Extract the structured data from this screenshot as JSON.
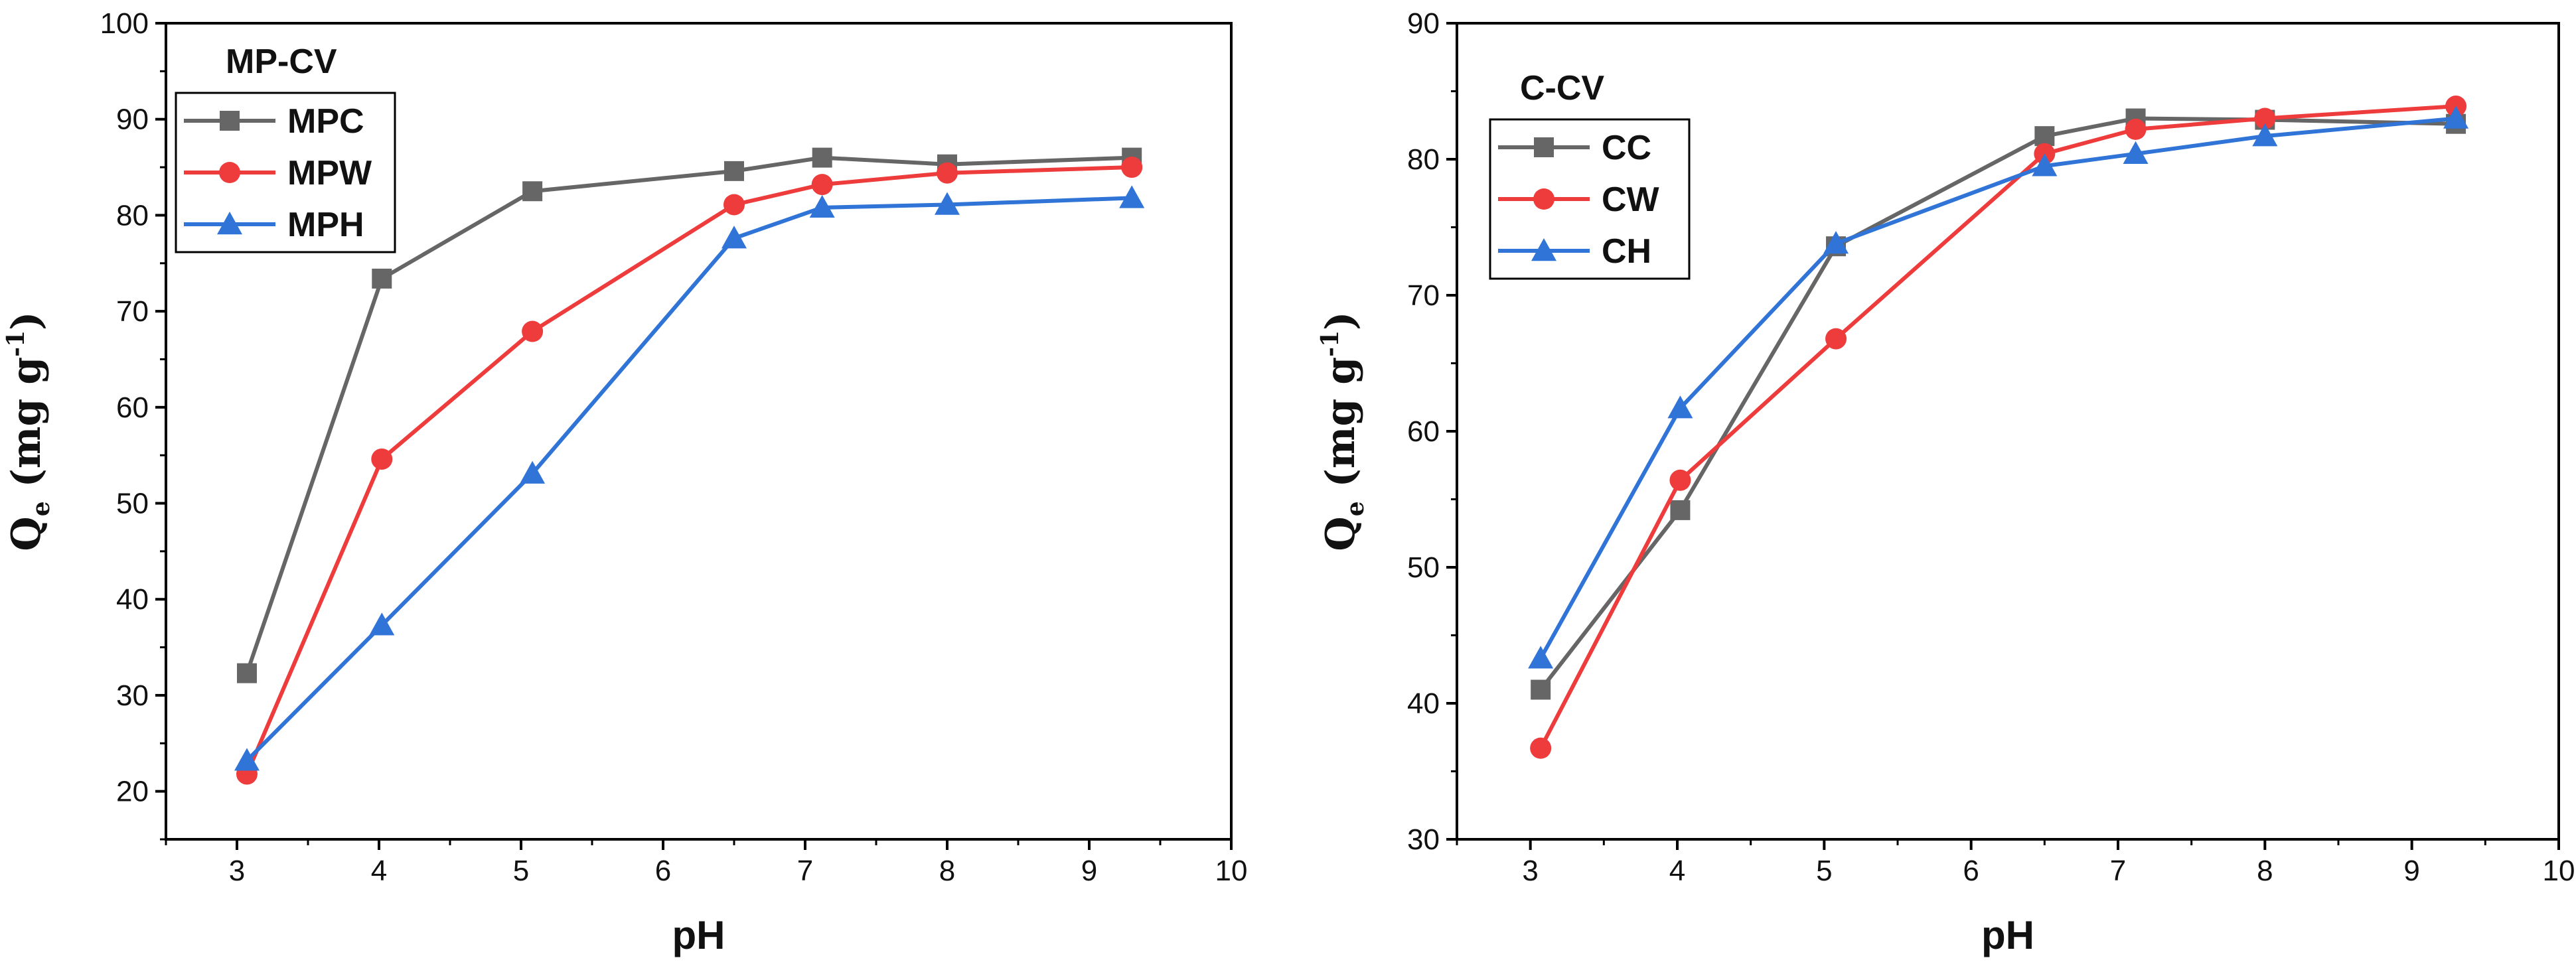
{
  "chart_data": [
    {
      "type": "line",
      "legend_title": "MP-CV",
      "xlabel": "pH",
      "ylabel": {
        "symbol": "Q",
        "subscript": "e",
        "units": "(mg g",
        "exponent": "-1",
        "close": ")"
      },
      "xlim": [
        2.5,
        10
      ],
      "ylim": [
        15,
        100
      ],
      "x_ticks": [
        3,
        4,
        5,
        6,
        7,
        8,
        9,
        10
      ],
      "y_ticks": [
        20,
        30,
        40,
        50,
        60,
        70,
        80,
        90,
        100
      ],
      "legend_position": "top-left",
      "series": [
        {
          "name": "MPC",
          "color": "#666666",
          "marker": "square",
          "x": [
            3.07,
            4.02,
            5.08,
            6.5,
            7.12,
            8.0,
            9.3
          ],
          "y": [
            32.3,
            73.4,
            82.5,
            84.6,
            86.0,
            85.3,
            86.0
          ]
        },
        {
          "name": "MPW",
          "color": "#ee3b3b",
          "marker": "circle",
          "x": [
            3.07,
            4.02,
            5.08,
            6.5,
            7.12,
            8.0,
            9.3
          ],
          "y": [
            21.8,
            54.6,
            67.9,
            81.1,
            83.2,
            84.4,
            85.0
          ]
        },
        {
          "name": "MPH",
          "color": "#2f74d6",
          "marker": "triangle",
          "x": [
            3.07,
            4.02,
            5.08,
            6.5,
            7.12,
            8.0,
            9.3
          ],
          "y": [
            23.2,
            37.3,
            53.1,
            77.6,
            80.8,
            81.1,
            81.8
          ]
        }
      ]
    },
    {
      "type": "line",
      "legend_title": "C-CV",
      "xlabel": "pH",
      "ylabel": {
        "symbol": "Q",
        "subscript": "e",
        "units": "(mg g",
        "exponent": "-1",
        "close": ")"
      },
      "xlim": [
        2.5,
        10
      ],
      "ylim": [
        30,
        90
      ],
      "x_ticks": [
        3,
        4,
        5,
        6,
        7,
        8,
        9,
        10
      ],
      "y_ticks": [
        30,
        40,
        50,
        60,
        70,
        80,
        90
      ],
      "legend_position": "top-left",
      "series": [
        {
          "name": "CC",
          "color": "#666666",
          "marker": "square",
          "x": [
            3.07,
            4.02,
            5.08,
            6.5,
            7.12,
            8.0,
            9.3
          ],
          "y": [
            41.0,
            54.2,
            73.6,
            81.7,
            83.0,
            82.9,
            82.6
          ]
        },
        {
          "name": "CW",
          "color": "#ee3b3b",
          "marker": "circle",
          "x": [
            3.07,
            4.02,
            5.08,
            6.5,
            7.12,
            8.0,
            9.3
          ],
          "y": [
            36.7,
            56.4,
            66.8,
            80.4,
            82.2,
            83.0,
            83.9
          ]
        },
        {
          "name": "CH",
          "color": "#2f74d6",
          "marker": "triangle",
          "x": [
            3.07,
            4.02,
            5.08,
            6.5,
            7.12,
            8.0,
            9.3
          ],
          "y": [
            43.3,
            61.7,
            73.8,
            79.5,
            80.4,
            81.7,
            83.0
          ]
        }
      ]
    }
  ]
}
